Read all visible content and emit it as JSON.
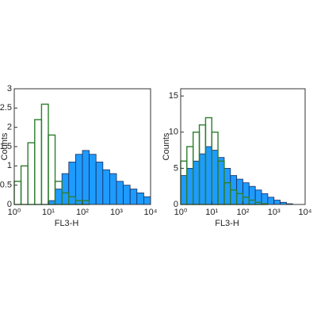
{
  "chart_data": [
    {
      "type": "histogram",
      "xlabel": "FL3-H",
      "ylabel": "Counts",
      "xscale": "log",
      "xlim": [
        1,
        10000
      ],
      "xticks": [
        {
          "value": 1,
          "label": "10⁰"
        },
        {
          "value": 10,
          "label": "10¹"
        },
        {
          "value": 100,
          "label": "10²"
        },
        {
          "value": 1000,
          "label": "10³"
        },
        {
          "value": 10000,
          "label": "10⁴"
        }
      ],
      "ylim": [
        0,
        3
      ],
      "yticks": [
        0,
        0.5,
        1,
        1.5,
        2,
        2.5,
        3
      ],
      "bins": [
        1,
        1.58,
        2.51,
        3.98,
        6.31,
        10,
        15.8,
        25.1,
        39.8,
        63.1,
        100,
        158,
        251,
        398,
        631,
        1000,
        1580,
        2510,
        3980,
        6310,
        10000
      ],
      "series": [
        {
          "color": "#1e9bff",
          "values": [
            0,
            0,
            0,
            0,
            0,
            0.1,
            0.4,
            0.8,
            1.1,
            1.3,
            1.4,
            1.3,
            1.1,
            0.9,
            0.8,
            0.6,
            0.5,
            0.4,
            0.3,
            0.2
          ]
        },
        {
          "color": "#2e7d2e",
          "values": [
            0.6,
            1.0,
            1.6,
            2.2,
            2.6,
            1.8,
            0.6,
            0.3,
            0.2,
            0.1,
            0.1,
            0,
            0,
            0,
            0,
            0,
            0,
            0,
            0,
            0
          ]
        }
      ]
    },
    {
      "type": "histogram",
      "xlabel": "FL3-H",
      "ylabel": "Counts",
      "xscale": "log",
      "xlim": [
        1,
        10000
      ],
      "xticks": [
        {
          "value": 1,
          "label": "10⁰"
        },
        {
          "value": 10,
          "label": "10¹"
        },
        {
          "value": 100,
          "label": "10²"
        },
        {
          "value": 1000,
          "label": "10³"
        },
        {
          "value": 10000,
          "label": "10⁴"
        }
      ],
      "ylim": [
        0,
        16
      ],
      "yticks": [
        0,
        5,
        10,
        15
      ],
      "bins": [
        1,
        1.58,
        2.51,
        3.98,
        6.31,
        10,
        15.8,
        25.1,
        39.8,
        63.1,
        100,
        158,
        251,
        398,
        631,
        1000,
        1580,
        2510,
        3980,
        6310,
        10000
      ],
      "series": [
        {
          "color": "#1e9bff",
          "values": [
            4,
            5,
            6,
            7,
            8,
            7.5,
            6.5,
            5,
            4,
            3.5,
            3,
            2.5,
            2,
            1.5,
            1,
            0.6,
            0.3,
            0.1,
            0,
            0
          ]
        },
        {
          "color": "#2e7d2e",
          "values": [
            6,
            8,
            10,
            11,
            12,
            10,
            6,
            3,
            2,
            1.5,
            1,
            0.6,
            0.3,
            0.1,
            0,
            0,
            0,
            0,
            0,
            0
          ]
        }
      ]
    }
  ]
}
